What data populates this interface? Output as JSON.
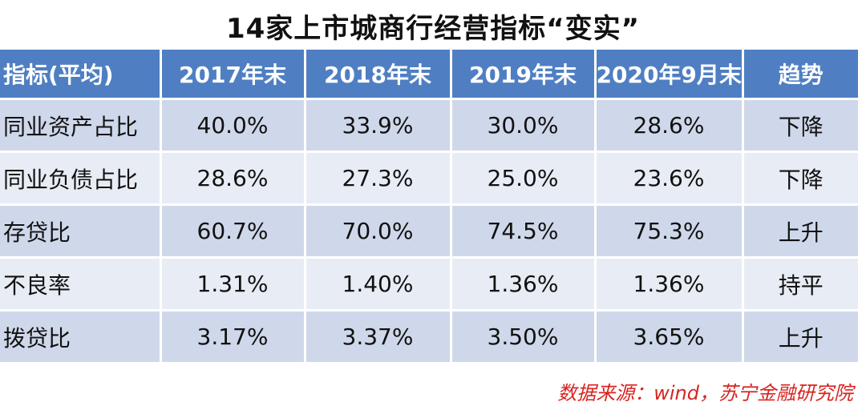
{
  "title": "14家上市城商行经营指标“变实”",
  "colors": {
    "header_bg": "#4f7fc2",
    "row_odd_bg": "#cfd8ea",
    "row_even_bg": "#e8edf5",
    "source_text": "#d8231f"
  },
  "chart_data": {
    "type": "table",
    "title": "14家上市城商行经营指标“变实”",
    "columns": [
      "指标(平均)",
      "2017年末",
      "2018年末",
      "2019年末",
      "2020年9月末",
      "趋势"
    ],
    "rows": [
      [
        "同业资产占比",
        "40.0%",
        "33.9%",
        "30.0%",
        "28.6%",
        "下降"
      ],
      [
        "同业负债占比",
        "28.6%",
        "27.3%",
        "25.0%",
        "23.6%",
        "下降"
      ],
      [
        "存贷比",
        "60.7%",
        "70.0%",
        "74.5%",
        "75.3%",
        "上升"
      ],
      [
        "不良率",
        "1.31%",
        "1.40%",
        "1.36%",
        "1.36%",
        "持平"
      ],
      [
        "拨贷比",
        "3.17%",
        "3.37%",
        "3.50%",
        "3.65%",
        "上升"
      ]
    ]
  },
  "source": "数据来源：wind，苏宁金融研究院"
}
